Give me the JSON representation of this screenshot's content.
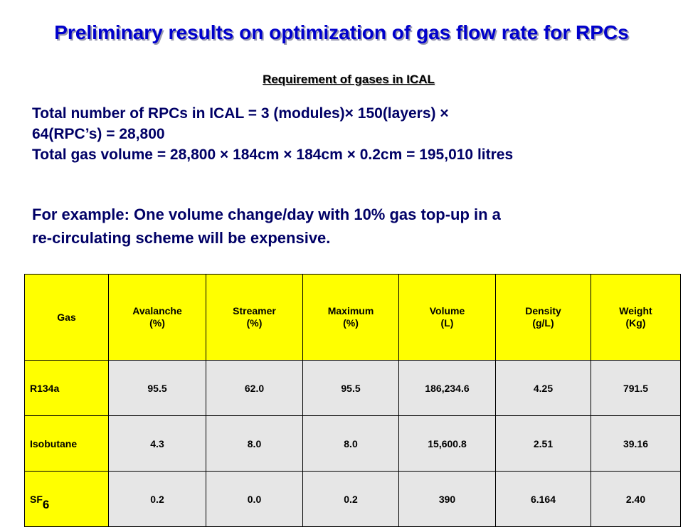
{
  "title": "Preliminary results on optimization of gas flow rate for RPCs",
  "subtitle": "Requirement of gases in ICAL",
  "lines": {
    "rpc_count_1": "Total number of RPCs in ICAL = 3 (modules)× 150(layers) ×",
    "rpc_count_2": "64(RPC’s) = 28,800",
    "gas_volume": "Total gas volume = 28,800 × 184cm × 184cm × 0.2cm = 195,010 litres",
    "example_1": "For example: One volume change/day with 10% gas top-up in a",
    "example_2": "re-circulating scheme will be expensive."
  },
  "table": {
    "headers": [
      {
        "line1": "Gas",
        "line2": ""
      },
      {
        "line1": "Avalanche",
        "line2": "(%)"
      },
      {
        "line1": "Streamer",
        "line2": "(%)"
      },
      {
        "line1": "Maximum",
        "line2": "(%)"
      },
      {
        "line1": "Volume",
        "line2": "(L)"
      },
      {
        "line1": "Density",
        "line2": "(g/L)"
      },
      {
        "line1": "Weight",
        "line2": "(Kg)"
      }
    ],
    "rows": [
      {
        "gas": "R134a",
        "gas_sub": "",
        "avalanche": "95.5",
        "streamer": "62.0",
        "maximum": "95.5",
        "volume": "186,234.6",
        "density": "4.25",
        "weight": "791.5"
      },
      {
        "gas": "Isobutane",
        "gas_sub": "",
        "avalanche": "4.3",
        "streamer": "8.0",
        "maximum": "8.0",
        "volume": "15,600.8",
        "density": "2.51",
        "weight": "39.16"
      },
      {
        "gas": "SF",
        "gas_sub": "6",
        "avalanche": "0.2",
        "streamer": "0.0",
        "maximum": "0.2",
        "volume": "390",
        "density": "6.164",
        "weight": "2.40"
      }
    ]
  },
  "colors": {
    "title": "#0000cc",
    "body_text": "#000066",
    "header_fill": "#ffff00",
    "cell_fill": "#e6e6e6"
  }
}
